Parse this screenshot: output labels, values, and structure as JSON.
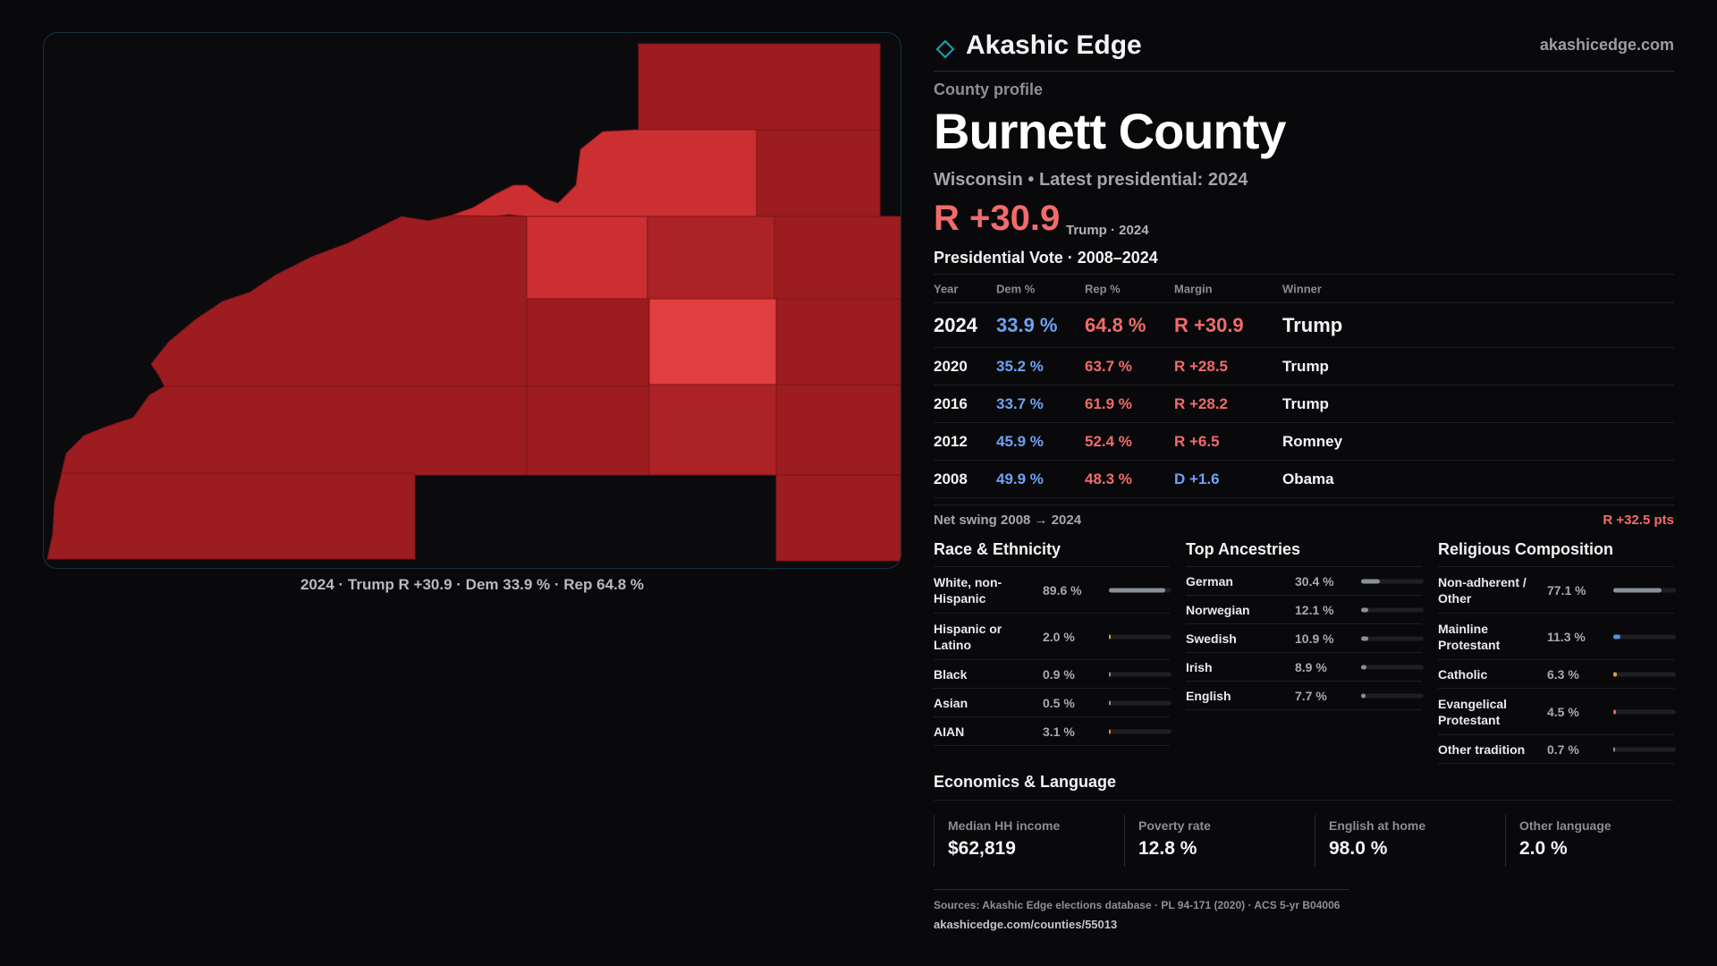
{
  "map": {
    "caption": "2024 · Trump R +30.9 · Dem 33.9 % · Rep 64.8 %",
    "colors": {
      "dark": "#9c1c20",
      "mid": "#ac2226",
      "light": "#cc2f32",
      "bright": "#e03e3f"
    }
  },
  "brand": {
    "name": "Akashic Edge",
    "url": "akashicedge.com",
    "accent": "#14a6b4"
  },
  "profile": {
    "label": "County profile",
    "county": "Burnett County",
    "subtitle": "Wisconsin • Latest presidential: 2024",
    "headline_margin": "R +30.9",
    "headline_note": "Trump · 2024"
  },
  "vote": {
    "title": "Presidential Vote · 2008–2024",
    "headers": {
      "year": "Year",
      "dem": "Dem %",
      "rep": "Rep %",
      "margin": "Margin",
      "winner": "Winner"
    },
    "rows": [
      {
        "year": "2024",
        "dem": "33.9 %",
        "rep": "64.8 %",
        "margin": "R +30.9",
        "winner": "Trump"
      },
      {
        "year": "2020",
        "dem": "35.2 %",
        "rep": "63.7 %",
        "margin": "R +28.5",
        "winner": "Trump"
      },
      {
        "year": "2016",
        "dem": "33.7 %",
        "rep": "61.9 %",
        "margin": "R +28.2",
        "winner": "Trump"
      },
      {
        "year": "2012",
        "dem": "45.9 %",
        "rep": "52.4 %",
        "margin": "R +6.5",
        "winner": "Romney"
      },
      {
        "year": "2008",
        "dem": "49.9 %",
        "rep": "48.3 %",
        "margin": "D +1.6",
        "winner": "Obama"
      }
    ],
    "swing_label": "Net swing 2008 → 2024",
    "swing_value": "R +32.5 pts",
    "colors": {
      "dem": "#6da2f4",
      "rep": "#f26b6b"
    }
  },
  "race": {
    "title": "Race & Ethnicity",
    "items": [
      {
        "label": "White, non-Hispanic",
        "pct": "89.6 %",
        "value": 89.6,
        "color": "#8a9099"
      },
      {
        "label": "Hispanic or Latino",
        "pct": "2.0 %",
        "value": 2.0,
        "color": "#d4a13a"
      },
      {
        "label": "Black",
        "pct": "0.9 %",
        "value": 0.9,
        "color": "#8a9099"
      },
      {
        "label": "Asian",
        "pct": "0.5 %",
        "value": 0.5,
        "color": "#8a9099"
      },
      {
        "label": "AIAN",
        "pct": "3.1 %",
        "value": 3.1,
        "color": "#d88a3a"
      }
    ]
  },
  "ancestry": {
    "title": "Top Ancestries",
    "items": [
      {
        "label": "German",
        "pct": "30.4 %",
        "value": 30.4,
        "color": "#8a9099"
      },
      {
        "label": "Norwegian",
        "pct": "12.1 %",
        "value": 12.1,
        "color": "#8a9099"
      },
      {
        "label": "Swedish",
        "pct": "10.9 %",
        "value": 10.9,
        "color": "#8a9099"
      },
      {
        "label": "Irish",
        "pct": "8.9 %",
        "value": 8.9,
        "color": "#8a9099"
      },
      {
        "label": "English",
        "pct": "7.7 %",
        "value": 7.7,
        "color": "#8a9099"
      }
    ]
  },
  "religion": {
    "title": "Religious Composition",
    "items": [
      {
        "label": "Non-adherent / Other",
        "pct": "77.1 %",
        "value": 77.1,
        "color": "#8a9099"
      },
      {
        "label": "Mainline Protestant",
        "pct": "11.3 %",
        "value": 11.3,
        "color": "#5b8fe0"
      },
      {
        "label": "Catholic",
        "pct": "6.3 %",
        "value": 6.3,
        "color": "#d4a13a"
      },
      {
        "label": "Evangelical Protestant",
        "pct": "4.5 %",
        "value": 4.5,
        "color": "#e06060"
      },
      {
        "label": "Other tradition",
        "pct": "0.7 %",
        "value": 0.7,
        "color": "#8a9099"
      }
    ]
  },
  "economics": {
    "title": "Economics & Language",
    "cells": [
      {
        "label": "Median HH income",
        "value": "$62,819"
      },
      {
        "label": "Poverty rate",
        "value": "12.8 %"
      },
      {
        "label": "English at home",
        "value": "98.0 %"
      },
      {
        "label": "Other language",
        "value": "2.0 %"
      }
    ]
  },
  "footer": {
    "sources": "Sources: Akashic Edge elections database · PL 94-171 (2020) · ACS 5-yr B04006",
    "url": "akashicedge.com/counties/55013"
  }
}
